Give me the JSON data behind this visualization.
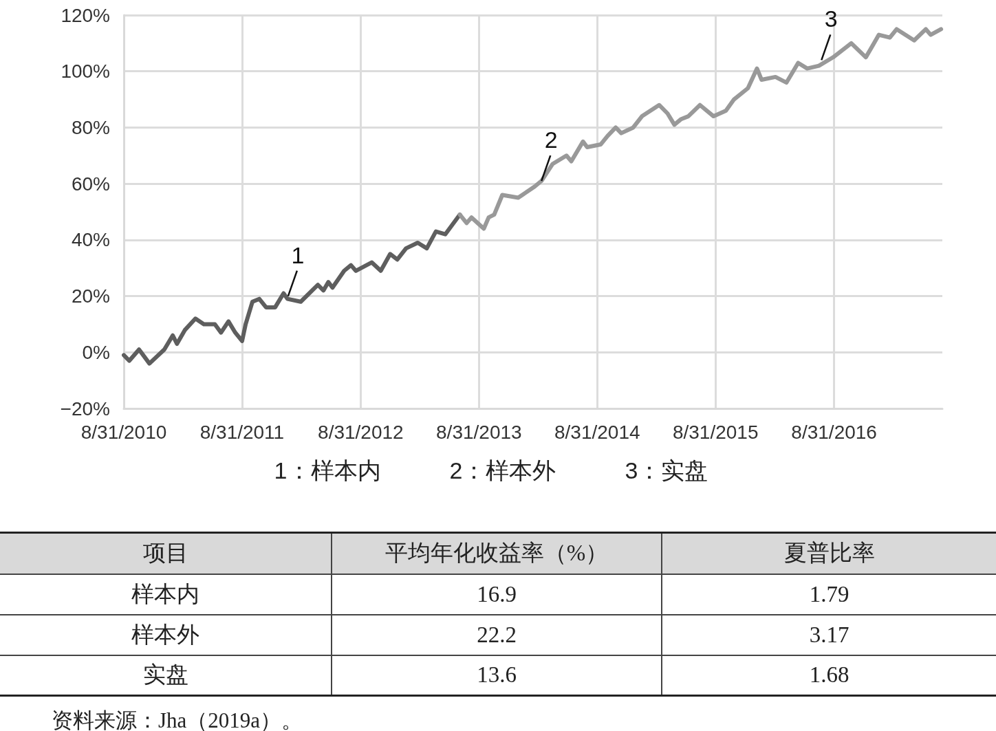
{
  "chart_data": [
    {
      "type": "line",
      "xlim": [
        "2010-08-31",
        "2017-07-31"
      ],
      "xticks": [
        {
          "value": "2010-08-31",
          "label": "8/31/2010"
        },
        {
          "value": "2011-08-31",
          "label": "8/31/2011"
        },
        {
          "value": "2012-08-31",
          "label": "8/31/2012"
        },
        {
          "value": "2013-08-31",
          "label": "8/31/2013"
        },
        {
          "value": "2014-08-31",
          "label": "8/31/2014"
        },
        {
          "value": "2015-08-31",
          "label": "8/31/2015"
        },
        {
          "value": "2016-08-31",
          "label": "8/31/2016"
        }
      ],
      "ylim": [
        -20,
        120
      ],
      "yticks": [
        {
          "value": -20,
          "label": "−20%"
        },
        {
          "value": 0,
          "label": "0%"
        },
        {
          "value": 20,
          "label": "20%"
        },
        {
          "value": 40,
          "label": "40%"
        },
        {
          "value": 60,
          "label": "60%"
        },
        {
          "value": 80,
          "label": "80%"
        },
        {
          "value": 100,
          "label": "100%"
        },
        {
          "value": 120,
          "label": "120%"
        }
      ],
      "grid": true,
      "series": [
        {
          "color": "#5e5e5e",
          "x": [
            "2010-08-31",
            "2010-09-17",
            "2010-10-17",
            "2010-11-18",
            "2011-01-03",
            "2011-01-29",
            "2011-02-11",
            "2011-03-08",
            "2011-04-09",
            "2011-05-05",
            "2011-06-08",
            "2011-06-27",
            "2011-07-20",
            "2011-08-10",
            "2011-08-31",
            "2011-09-11",
            "2011-10-02",
            "2011-10-23",
            "2011-11-13",
            "2011-12-11",
            "2012-01-06",
            "2012-01-18",
            "2012-02-28",
            "2012-04-21",
            "2012-05-08",
            "2012-05-23",
            "2012-06-05",
            "2012-07-11",
            "2012-08-01",
            "2012-08-16",
            "2012-10-04",
            "2012-11-01",
            "2012-11-30",
            "2012-12-22",
            "2013-01-18",
            "2013-02-23",
            "2013-03-23",
            "2013-04-20",
            "2013-05-19",
            "2013-07-03"
          ],
          "values": [
            -1,
            -3,
            1,
            -4,
            1,
            6,
            3,
            8,
            12,
            10,
            10,
            7,
            11,
            7,
            4,
            10,
            18,
            19,
            16,
            16,
            21,
            19,
            18,
            24,
            22,
            25,
            23,
            29,
            31,
            29,
            32,
            29,
            35,
            33,
            37,
            39,
            37,
            43,
            42,
            49
          ]
        },
        {
          "color": "#999999",
          "x": [
            "2013-07-03",
            "2013-07-24",
            "2013-08-08",
            "2013-09-15",
            "2013-09-30",
            "2013-10-17",
            "2013-11-11",
            "2013-12-30",
            "2014-02-19",
            "2014-03-12",
            "2014-04-15",
            "2014-05-28",
            "2014-06-12",
            "2014-07-18",
            "2014-07-31",
            "2014-09-11",
            "2014-10-02",
            "2014-10-27",
            "2014-11-13",
            "2014-12-20",
            "2015-01-16",
            "2015-03-10",
            "2015-04-05",
            "2015-04-26",
            "2015-05-17",
            "2015-06-08",
            "2015-07-14",
            "2015-08-25",
            "2015-10-02",
            "2015-10-27",
            "2015-12-09",
            "2016-01-06",
            "2016-01-20",
            "2016-03-03",
            "2016-04-06",
            "2016-05-12",
            "2016-06-09",
            "2016-07-15",
            "2016-08-28",
            "2016-10-23",
            "2016-12-07",
            "2017-01-16",
            "2017-02-19",
            "2017-03-12",
            "2017-05-05",
            "2017-06-10",
            "2017-06-25",
            "2017-07-27"
          ],
          "values": [
            49,
            46,
            48,
            44,
            48,
            49,
            56,
            55,
            59,
            61,
            67,
            70,
            68,
            75,
            73,
            74,
            77,
            80,
            78,
            80,
            84,
            88,
            85,
            81,
            83,
            84,
            88,
            84,
            86,
            90,
            94,
            101,
            97,
            98,
            96,
            103,
            101,
            102,
            105,
            110,
            105,
            113,
            112,
            115,
            111,
            115,
            113,
            115
          ]
        }
      ],
      "annotations": [
        {
          "text": "1",
          "x": "2012-01-20",
          "y": 20
        },
        {
          "text": "2",
          "x": "2014-03-12",
          "y": 61
        },
        {
          "text": "3",
          "x": "2016-07-23",
          "y": 104
        },
        "1：样本内",
        "2：样本外",
        "3：实盘"
      ]
    },
    {
      "type": "other",
      "ylabel": "项目",
      "categories": [
        "样本内",
        "样本外",
        "实盘"
      ],
      "series": [
        {
          "name": "平均年化收益率（%）",
          "values": [
            16.9,
            22.2,
            13.6
          ]
        },
        {
          "name": "夏普比率",
          "values": [
            1.79,
            3.17,
            1.68
          ]
        }
      ],
      "data_labels": true,
      "annotations": [
        "资料来源：Jha（2019a）。"
      ]
    }
  ]
}
